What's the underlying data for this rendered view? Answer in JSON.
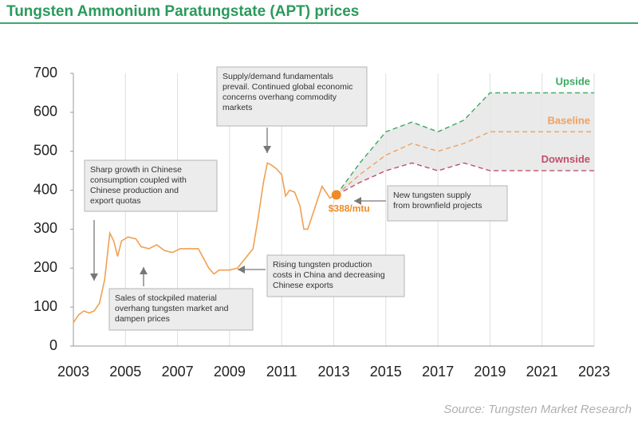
{
  "title": "Tungsten Ammonium Paratungstate (APT) prices",
  "source": "Source: Tungsten Market Research",
  "colors": {
    "title": "#2a9a5c",
    "history": "#f0a050",
    "upside": "#3aa860",
    "baseline": "#f0a060",
    "downside": "#c0506a",
    "band": "#e6e6e6",
    "marker": "#f08a28",
    "callout_fill": "#ececec",
    "callout_border": "#b5b5b5"
  },
  "chart_data": {
    "type": "line",
    "title": "Tungsten Ammonium Paratungstate (APT) prices",
    "xlabel": "",
    "ylabel": "",
    "xlim": [
      2003,
      2023
    ],
    "ylim": [
      0,
      700
    ],
    "x_ticks": [
      "2003",
      "2005",
      "2007",
      "2009",
      "2011",
      "2013",
      "2015",
      "2017",
      "2019",
      "2021",
      "2023"
    ],
    "y_ticks": [
      "0",
      "100",
      "200",
      "300",
      "400",
      "500",
      "600",
      "700"
    ],
    "grid": "vertical",
    "series": [
      {
        "name": "",
        "style": "solid",
        "points": [
          [
            2003.0,
            60
          ],
          [
            2003.2,
            80
          ],
          [
            2003.4,
            90
          ],
          [
            2003.6,
            85
          ],
          [
            2003.8,
            90
          ],
          [
            2004.0,
            110
          ],
          [
            2004.2,
            170
          ],
          [
            2004.4,
            290
          ],
          [
            2004.55,
            270
          ],
          [
            2004.7,
            230
          ],
          [
            2004.85,
            270
          ],
          [
            2005.1,
            280
          ],
          [
            2005.4,
            275
          ],
          [
            2005.6,
            255
          ],
          [
            2005.9,
            250
          ],
          [
            2006.2,
            260
          ],
          [
            2006.5,
            245
          ],
          [
            2006.8,
            240
          ],
          [
            2007.1,
            250
          ],
          [
            2007.4,
            250
          ],
          [
            2007.8,
            250
          ],
          [
            2008.0,
            225
          ],
          [
            2008.2,
            200
          ],
          [
            2008.4,
            185
          ],
          [
            2008.6,
            195
          ],
          [
            2009.0,
            195
          ],
          [
            2009.3,
            200
          ],
          [
            2009.6,
            225
          ],
          [
            2009.9,
            250
          ],
          [
            2010.1,
            330
          ],
          [
            2010.3,
            420
          ],
          [
            2010.45,
            470
          ],
          [
            2010.6,
            465
          ],
          [
            2010.8,
            455
          ],
          [
            2011.0,
            440
          ],
          [
            2011.15,
            385
          ],
          [
            2011.3,
            400
          ],
          [
            2011.5,
            395
          ],
          [
            2011.7,
            360
          ],
          [
            2011.85,
            300
          ],
          [
            2012.0,
            300
          ],
          [
            2012.2,
            340
          ],
          [
            2012.4,
            380
          ],
          [
            2012.55,
            410
          ],
          [
            2012.7,
            395
          ],
          [
            2012.85,
            380
          ],
          [
            2013.0,
            385
          ],
          [
            2013.1,
            388
          ]
        ]
      },
      {
        "name": "Upside",
        "style": "dashed",
        "points": [
          [
            2013.1,
            388
          ],
          [
            2014.0,
            470
          ],
          [
            2015.0,
            550
          ],
          [
            2016.0,
            575
          ],
          [
            2017.0,
            550
          ],
          [
            2018.0,
            580
          ],
          [
            2019.0,
            650
          ],
          [
            2023.0,
            650
          ]
        ]
      },
      {
        "name": "Baseline",
        "style": "dashed",
        "points": [
          [
            2013.1,
            388
          ],
          [
            2014.0,
            440
          ],
          [
            2015.0,
            490
          ],
          [
            2016.0,
            520
          ],
          [
            2017.0,
            500
          ],
          [
            2018.0,
            520
          ],
          [
            2019.0,
            550
          ],
          [
            2023.0,
            550
          ]
        ]
      },
      {
        "name": "Downside",
        "style": "dashed",
        "points": [
          [
            2013.1,
            388
          ],
          [
            2014.0,
            420
          ],
          [
            2015.0,
            450
          ],
          [
            2016.0,
            470
          ],
          [
            2017.0,
            450
          ],
          [
            2018.0,
            470
          ],
          [
            2019.0,
            450
          ],
          [
            2023.0,
            450
          ]
        ]
      }
    ],
    "marker": {
      "x": 2013.1,
      "y": 388,
      "label": "$388/mtu"
    },
    "annotations": [
      {
        "id": "sharp-growth",
        "lines": [
          "Sharp growth in Chinese",
          "consumption coupled with",
          "Chinese production and",
          "export quotas"
        ]
      },
      {
        "id": "sales-stockpiled",
        "lines": [
          "Sales of stockpiled material",
          "overhang tungsten market and",
          "dampen prices"
        ]
      },
      {
        "id": "supply-demand",
        "lines": [
          "Supply/demand fundamentals",
          "prevail. Continued global economic",
          "concerns overhang commodity",
          "markets"
        ]
      },
      {
        "id": "rising-costs",
        "lines": [
          "Rising tungsten production",
          "costs in China and decreasing",
          "Chinese exports"
        ]
      },
      {
        "id": "new-supply",
        "lines": [
          "New tungsten supply",
          "from brownfield projects"
        ]
      }
    ]
  }
}
